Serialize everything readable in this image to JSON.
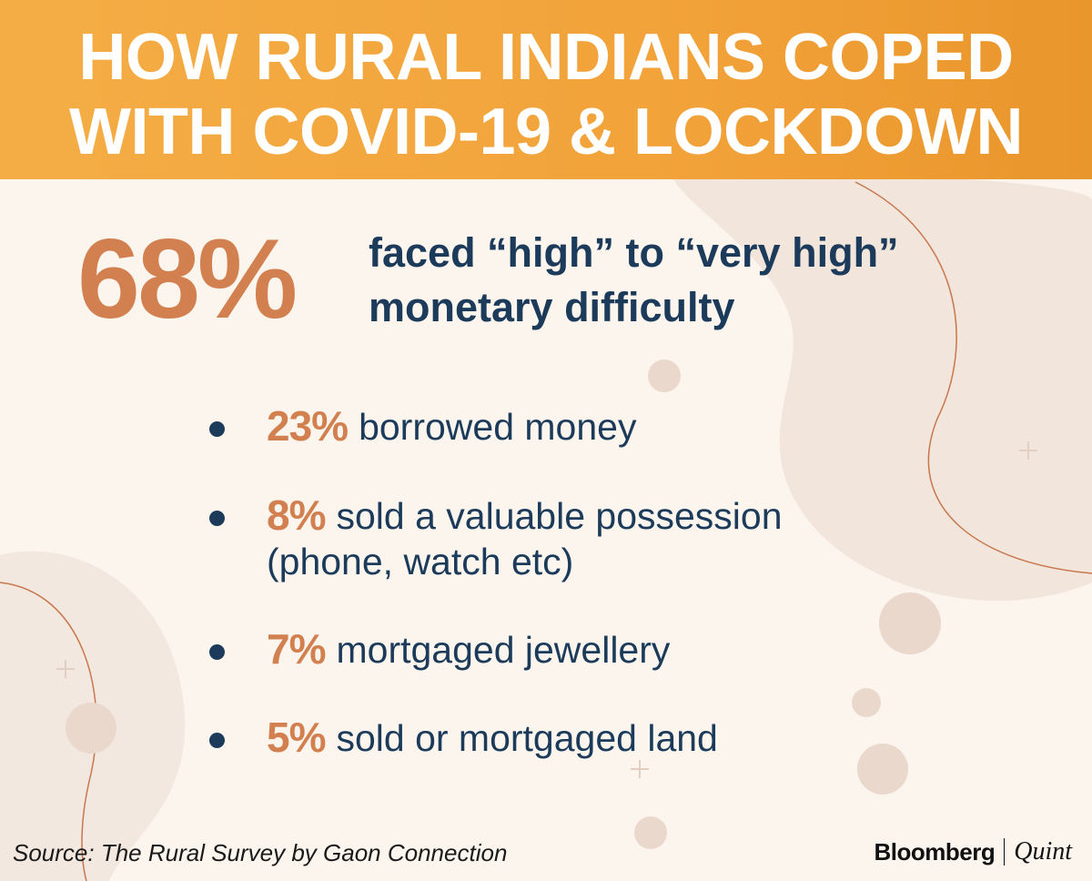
{
  "header": {
    "title": [
      "HOW RURAL INDIANS COPED",
      "WITH COVID-19 & LOCKDOWN"
    ]
  },
  "headline": {
    "stat": "68%",
    "text": [
      "faced “high” to “very high”",
      "monetary difficulty"
    ]
  },
  "items": [
    {
      "stat": "23%",
      "lines": [
        "borrowed money"
      ]
    },
    {
      "stat": "8%",
      "lines": [
        "sold a valuable possession",
        "(phone, watch etc)"
      ]
    },
    {
      "stat": "7%",
      "lines": [
        "mortgaged jewellery"
      ]
    },
    {
      "stat": "5%",
      "lines": [
        "sold or mortgaged land"
      ]
    }
  ],
  "footer": {
    "source": "Source: The Rural Survey by Gaon Connection",
    "brand": [
      "Bloomberg",
      "Quint"
    ]
  }
}
